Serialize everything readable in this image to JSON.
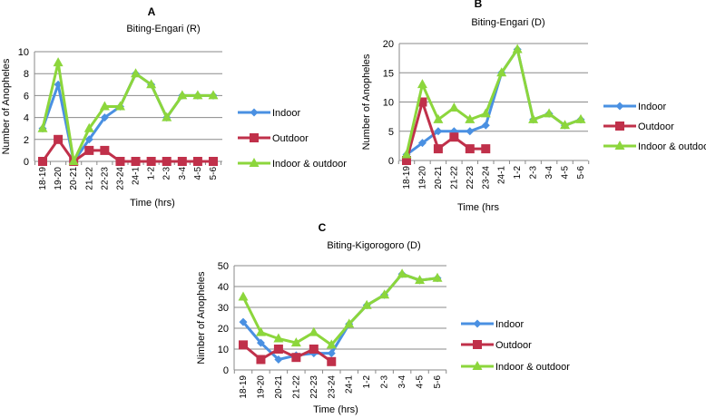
{
  "chart_data": [
    {
      "type": "line",
      "panel": "A",
      "title": "Biting-Engari (R)",
      "xlabel": "Time (hrs)",
      "ylabel": "Number of Anopheles",
      "ylim": [
        0,
        10
      ],
      "yticks": [
        0,
        2,
        4,
        6,
        8,
        10
      ],
      "grid": true,
      "legend": "right",
      "categories": [
        "18-19",
        "19-20",
        "20-21",
        "21-22",
        "22-23",
        "23-24",
        "24-1",
        "1-2",
        "2-3",
        "3-4",
        "4-5",
        "5-6"
      ],
      "series": [
        {
          "name": "Indoor",
          "color": "#4a90e2",
          "marker": "diamond",
          "values": [
            3,
            7,
            0,
            2,
            4,
            5,
            8,
            7,
            4,
            6,
            6,
            6
          ]
        },
        {
          "name": "Outdoor",
          "color": "#c0304a",
          "marker": "square",
          "values": [
            0,
            2,
            0,
            1,
            1,
            0,
            0,
            0,
            0,
            0,
            0,
            0
          ]
        },
        {
          "name": "Indoor & outdoor",
          "color": "#8cd63c",
          "marker": "triangle",
          "values": [
            3,
            9,
            0,
            3,
            5,
            5,
            8,
            7,
            4,
            6,
            6,
            6
          ]
        }
      ]
    },
    {
      "type": "line",
      "panel": "B",
      "title": "Biting-Engari (D)",
      "xlabel": "Time (hrs",
      "ylabel": "Number of Anopheles",
      "ylim": [
        0,
        20
      ],
      "yticks": [
        0,
        5,
        10,
        15,
        20
      ],
      "grid": true,
      "legend": "right",
      "categories": [
        "18-19",
        "19-20",
        "20-21",
        "21-22",
        "22-23",
        "23-24",
        "24-1",
        "1-2",
        "2-3",
        "3-4",
        "4-5",
        "5-6"
      ],
      "series": [
        {
          "name": "Indoor",
          "color": "#4a90e2",
          "marker": "diamond",
          "values": [
            1,
            3,
            5,
            5,
            5,
            6,
            15,
            19,
            7,
            8,
            6,
            7
          ]
        },
        {
          "name": "Outdoor",
          "color": "#c0304a",
          "marker": "square",
          "values": [
            0,
            10,
            2,
            4,
            2,
            2,
            null,
            null,
            null,
            null,
            null,
            null
          ]
        },
        {
          "name": "Indoor & outdoor",
          "color": "#8cd63c",
          "marker": "triangle",
          "values": [
            1,
            13,
            7,
            9,
            7,
            8,
            15,
            19,
            7,
            8,
            6,
            7
          ]
        }
      ]
    },
    {
      "type": "line",
      "panel": "C",
      "title": "Biting-Kigorogoro (D)",
      "xlabel": "Time (hrs)",
      "ylabel": "Nimber of Anopheles",
      "ylim": [
        0,
        50
      ],
      "yticks": [
        0,
        10,
        20,
        30,
        40,
        50
      ],
      "grid": true,
      "legend": "right",
      "categories": [
        "18-19",
        "19-20",
        "20-21",
        "21-22",
        "22-23",
        "23-24",
        "24-1",
        "1-2",
        "2-3",
        "3-4",
        "4-5",
        "5-6"
      ],
      "series": [
        {
          "name": "Indoor",
          "color": "#4a90e2",
          "marker": "diamond",
          "values": [
            23,
            13,
            5,
            7,
            8,
            8,
            22,
            31,
            36,
            46,
            43,
            44
          ]
        },
        {
          "name": "Outdoor",
          "color": "#c0304a",
          "marker": "square",
          "values": [
            12,
            5,
            10,
            6,
            10,
            4,
            null,
            null,
            null,
            null,
            null,
            null
          ]
        },
        {
          "name": "Indoor & outdoor",
          "color": "#8cd63c",
          "marker": "triangle",
          "values": [
            35,
            18,
            15,
            13,
            18,
            12,
            22,
            31,
            36,
            46,
            43,
            44
          ]
        }
      ]
    }
  ]
}
